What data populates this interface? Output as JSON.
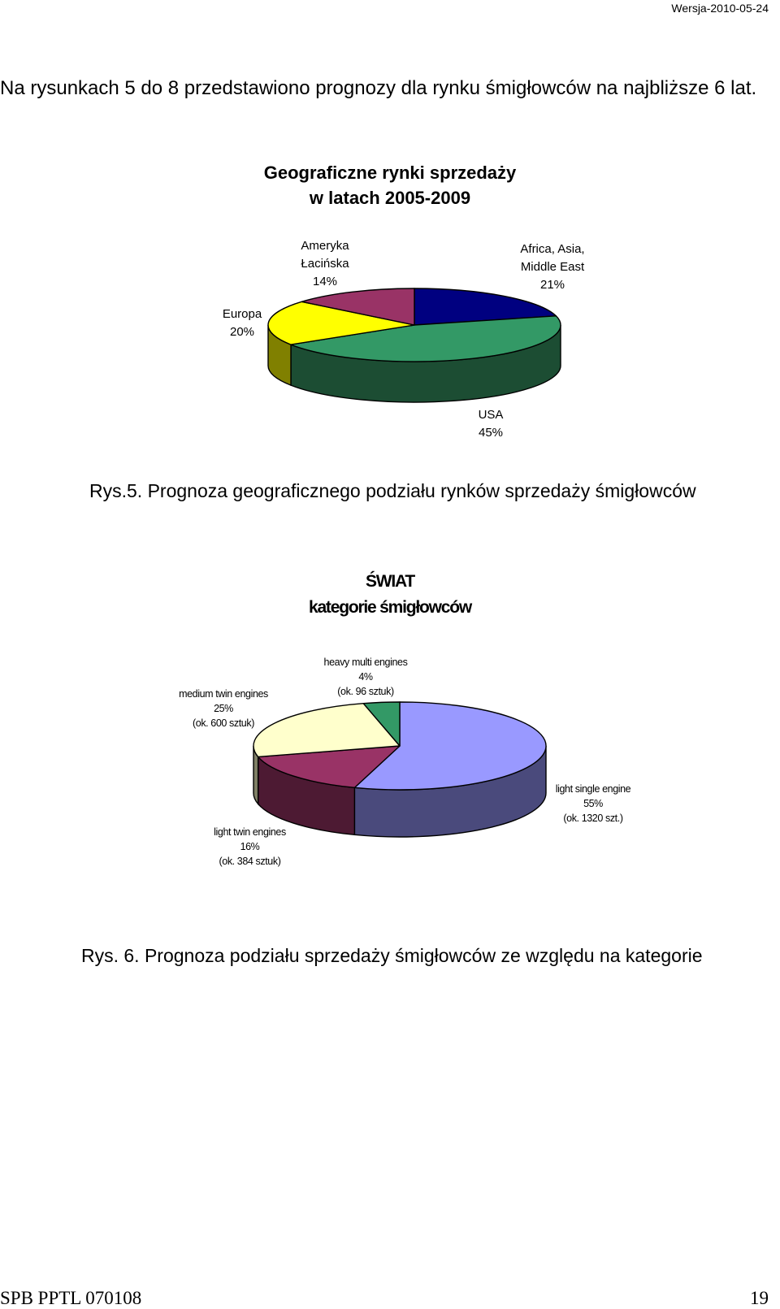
{
  "header": {
    "version": "Wersja-2010-05-24"
  },
  "intro_text": "Na rysunkach 5 do 8 przedstawiono prognozy dla rynku śmigłowców na najbliższe 6 lat.",
  "chart_data": [
    {
      "type": "pie",
      "style": "3d",
      "title_line1": "Geograficzne rynki sprzedaży",
      "title_line2": "w latach 2005-2009",
      "slices": [
        {
          "name": "Africa, Asia, Middle East",
          "label_lines": [
            "Africa, Asia,",
            "Middle East",
            "21%"
          ],
          "value": 21,
          "color": "#000080",
          "side_color": "#000050"
        },
        {
          "name": "USA",
          "label_lines": [
            "USA",
            "45%"
          ],
          "value": 45,
          "color": "#339966",
          "side_color": "#1c4d33"
        },
        {
          "name": "Europa",
          "label_lines": [
            "Europa",
            "20%"
          ],
          "value": 20,
          "color": "#ffff00",
          "side_color": "#808000"
        },
        {
          "name": "Ameryka Łacińska",
          "label_lines": [
            "Ameryka",
            "Łacińska",
            "14%"
          ],
          "value": 14,
          "color": "#993366",
          "side_color": "#4d1a33"
        }
      ],
      "caption": "Rys.5. Prognoza geograficznego podziału rynków sprzedaży śmigłowców"
    },
    {
      "type": "pie",
      "style": "3d",
      "title_line1": "ŚWIAT",
      "title_line2": "kategorie śmigłowców",
      "slices": [
        {
          "name": "light single engine",
          "label_lines": [
            "light single engine",
            "55%",
            "(ok. 1320 szt.)"
          ],
          "value": 55,
          "color": "#9999ff",
          "side_color": "#4a4a7c"
        },
        {
          "name": "light twin engines",
          "label_lines": [
            "light twin engines",
            "16%",
            "(ok. 384 sztuk)"
          ],
          "value": 16,
          "color": "#993366",
          "side_color": "#4d1a33"
        },
        {
          "name": "medium twin engines",
          "label_lines": [
            "medium twin engines",
            "25%",
            "(ok. 600 sztuk)"
          ],
          "value": 25,
          "color": "#ffffcc",
          "side_color": "#808066"
        },
        {
          "name": "heavy multi engines",
          "label_lines": [
            "heavy multi engines",
            "4%",
            "(ok. 96 sztuk)"
          ],
          "value": 4,
          "color": "#339966",
          "side_color": "#1c4d33"
        }
      ],
      "caption": "Rys. 6. Prognoza podziału sprzedaży śmigłowców ze względu na kategorie"
    }
  ],
  "footer": {
    "left": "SPB PPTL 070108",
    "right": "19"
  }
}
